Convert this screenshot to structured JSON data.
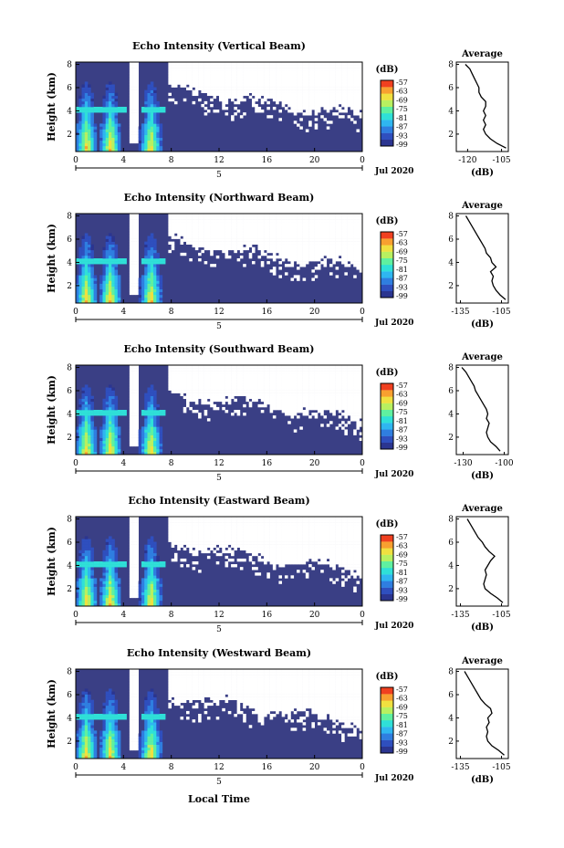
{
  "figure": {
    "xlabel": "Local Time",
    "date_label": "Jul 2020",
    "day_label": "5",
    "colorbar_unit": "(dB)",
    "colorbar_ticks": [
      "-57",
      "-63",
      "-69",
      "-75",
      "-81",
      "-87",
      "-93",
      "-99"
    ],
    "colorbar_colors": [
      "#2b3590",
      "#2f4fbe",
      "#2f7ee0",
      "#2fb6f0",
      "#2fe0d8",
      "#5ff0a0",
      "#b8f060",
      "#f0e040",
      "#f8a030",
      "#f04020"
    ],
    "heatmap_colors": {
      "low": "#3a3f85",
      "no_data": "#ffffff"
    }
  },
  "chart_data": [
    {
      "type": "heatmap",
      "title": "Echo Intensity (Vertical Beam)",
      "ylabel": "Height (km)",
      "xticks": [
        "0",
        "4",
        "8",
        "12",
        "16",
        "20",
        "0"
      ],
      "yticks": [
        "2",
        "4",
        "6",
        "8"
      ],
      "xlim": [
        0,
        24
      ],
      "ylim": [
        0.5,
        8.2
      ],
      "range_dB": [
        -99,
        -57
      ],
      "profile": {
        "title": "Average",
        "xlabel": "(dB)",
        "xticks": [
          "-120",
          "-105"
        ],
        "xlim": [
          -125,
          -102
        ],
        "yticks": [
          "2",
          "4",
          "6",
          "8"
        ],
        "ylim": [
          0.5,
          8.2
        ],
        "height_km": [
          0.8,
          1.2,
          1.6,
          2.0,
          2.4,
          2.8,
          3.2,
          3.6,
          4.0,
          4.4,
          4.8,
          5.2,
          5.6,
          6.0,
          6.4,
          6.8,
          7.2,
          7.6,
          8.0
        ],
        "values_dB": [
          -103,
          -107,
          -110,
          -112,
          -113,
          -112,
          -113,
          -112,
          -113,
          -112,
          -112,
          -114,
          -115,
          -115,
          -116,
          -117,
          -118,
          -119,
          -121
        ]
      }
    },
    {
      "type": "heatmap",
      "title": "Echo Intensity (Northward Beam)",
      "ylabel": "Height (km)",
      "xticks": [
        "0",
        "4",
        "8",
        "12",
        "16",
        "20",
        "0"
      ],
      "yticks": [
        "2",
        "4",
        "6",
        "8"
      ],
      "xlim": [
        0,
        24
      ],
      "ylim": [
        0.5,
        8.2
      ],
      "range_dB": [
        -99,
        -57
      ],
      "profile": {
        "title": "Average",
        "xlabel": "(dB)",
        "xticks": [
          "-135",
          "-105"
        ],
        "xlim": [
          -138,
          -100
        ],
        "yticks": [
          "2",
          "4",
          "6",
          "8"
        ],
        "ylim": [
          0.5,
          8.2
        ],
        "height_km": [
          0.8,
          1.2,
          1.6,
          2.0,
          2.4,
          2.8,
          3.2,
          3.6,
          4.0,
          4.4,
          4.8,
          5.2,
          5.6,
          6.0,
          6.4,
          6.8,
          7.2,
          7.6,
          8.0
        ],
        "values_dB": [
          -102,
          -106,
          -109,
          -111,
          -112,
          -111,
          -113,
          -109,
          -112,
          -113,
          -116,
          -117,
          -119,
          -121,
          -123,
          -125,
          -127,
          -129,
          -131
        ]
      }
    },
    {
      "type": "heatmap",
      "title": "Echo Intensity (Southward Beam)",
      "ylabel": "Height (km)",
      "xticks": [
        "0",
        "4",
        "8",
        "12",
        "16",
        "20",
        "0"
      ],
      "yticks": [
        "2",
        "4",
        "6",
        "8"
      ],
      "xlim": [
        0,
        24
      ],
      "ylim": [
        0.5,
        8.2
      ],
      "range_dB": [
        -99,
        -57
      ],
      "profile": {
        "title": "Average",
        "xlabel": "(dB)",
        "xticks": [
          "-130",
          "-100"
        ],
        "xlim": [
          -135,
          -97
        ],
        "yticks": [
          "2",
          "4",
          "6",
          "8"
        ],
        "ylim": [
          0.5,
          8.2
        ],
        "height_km": [
          0.8,
          1.2,
          1.6,
          2.0,
          2.4,
          2.8,
          3.2,
          3.6,
          4.0,
          4.4,
          4.8,
          5.2,
          5.6,
          6.0,
          6.4,
          6.8,
          7.2,
          7.6,
          8.0
        ],
        "values_dB": [
          -103,
          -106,
          -110,
          -112,
          -113,
          -112,
          -111,
          -113,
          -112,
          -113,
          -115,
          -117,
          -119,
          -121,
          -122,
          -124,
          -126,
          -128,
          -131
        ]
      }
    },
    {
      "type": "heatmap",
      "title": "Echo Intensity (Eastward Beam)",
      "ylabel": "Height (km)",
      "xticks": [
        "0",
        "4",
        "8",
        "12",
        "16",
        "20",
        "0"
      ],
      "yticks": [
        "2",
        "4",
        "6",
        "8"
      ],
      "xlim": [
        0,
        24
      ],
      "ylim": [
        0.5,
        8.2
      ],
      "range_dB": [
        -99,
        -57
      ],
      "profile": {
        "title": "Average",
        "xlabel": "(dB)",
        "xticks": [
          "-135",
          "-105"
        ],
        "xlim": [
          -138,
          -100
        ],
        "yticks": [
          "2",
          "4",
          "6",
          "8"
        ],
        "ylim": [
          0.5,
          8.2
        ],
        "height_km": [
          0.8,
          1.2,
          1.6,
          2.0,
          2.4,
          2.8,
          3.2,
          3.6,
          4.0,
          4.4,
          4.8,
          5.2,
          5.6,
          6.0,
          6.4,
          6.8,
          7.2,
          7.6,
          8.0
        ],
        "values_dB": [
          -104,
          -108,
          -113,
          -117,
          -118,
          -117,
          -116,
          -117,
          -115,
          -113,
          -110,
          -114,
          -117,
          -119,
          -122,
          -124,
          -126,
          -128,
          -130
        ]
      }
    },
    {
      "type": "heatmap",
      "title": "Echo Intensity (Westward Beam)",
      "ylabel": "Height (km)",
      "xticks": [
        "0",
        "4",
        "8",
        "12",
        "16",
        "20",
        "0"
      ],
      "yticks": [
        "2",
        "4",
        "6",
        "8"
      ],
      "xlim": [
        0,
        24
      ],
      "ylim": [
        0.5,
        8.2
      ],
      "range_dB": [
        -99,
        -57
      ],
      "profile": {
        "title": "Average",
        "xlabel": "(dB)",
        "xticks": [
          "-135",
          "-105"
        ],
        "xlim": [
          -138,
          -100
        ],
        "yticks": [
          "2",
          "4",
          "6",
          "8"
        ],
        "ylim": [
          0.5,
          8.2
        ],
        "height_km": [
          0.8,
          1.2,
          1.6,
          2.0,
          2.4,
          2.8,
          3.2,
          3.6,
          4.0,
          4.4,
          4.8,
          5.2,
          5.6,
          6.0,
          6.4,
          6.8,
          7.2,
          7.6,
          8.0
        ],
        "values_dB": [
          -103,
          -107,
          -112,
          -115,
          -116,
          -115,
          -116,
          -114,
          -115,
          -112,
          -113,
          -117,
          -120,
          -122,
          -124,
          -126,
          -128,
          -130,
          -132
        ]
      }
    }
  ]
}
